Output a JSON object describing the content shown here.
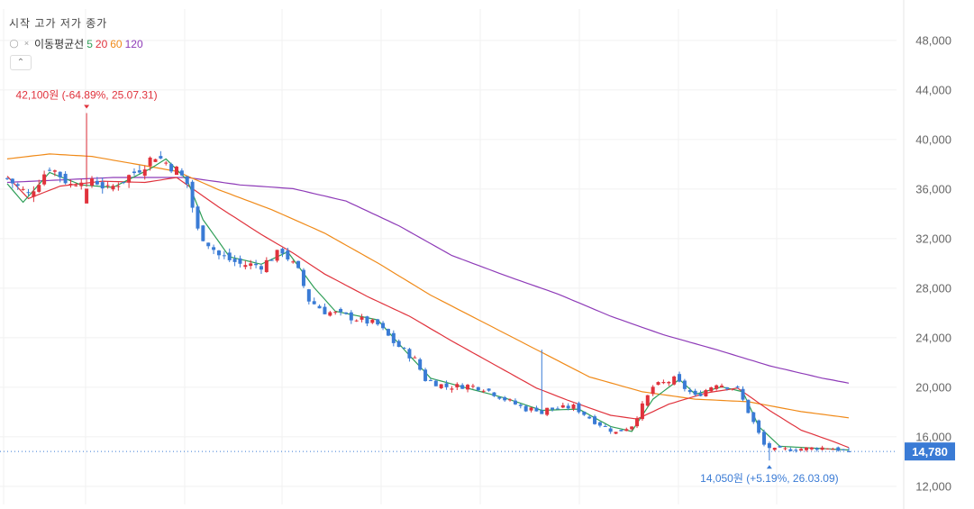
{
  "legend": {
    "ohlc_label": "시작 고가 저가 종가",
    "ma_title": "이동평균선",
    "ma_periods": [
      "5",
      "20",
      "60",
      "120"
    ],
    "collapse_icon": "chevron-up-icon",
    "hide_icon": "eye-slash-icon",
    "remove_icon": "close-icon"
  },
  "colors": {
    "up": "#e0323c",
    "down": "#3a7bd5",
    "ma5": "#2e9e57",
    "ma20": "#e0323c",
    "ma60": "#f08a18",
    "ma120": "#8e3bb8",
    "last_price_badge": "#3a7bd5"
  },
  "chart_data": {
    "type": "candlestick",
    "y_ticks": [
      "12,000",
      "16,000",
      "20,000",
      "24,000",
      "28,000",
      "32,000",
      "36,000",
      "40,000",
      "44,000",
      "48,000"
    ],
    "y_tick_values": [
      12000,
      16000,
      20000,
      24000,
      28000,
      32000,
      36000,
      40000,
      44000,
      48000
    ],
    "ylim": [
      10500,
      50500
    ],
    "n_points": 160,
    "last_price_label": "14,780",
    "last_price": 14780,
    "high_annotation": "42,100원 (-64.89%, 25.07.31)",
    "high_value": 42100,
    "high_index": 15,
    "low_annotation": "14,050원 (+5.19%, 26.03.09)",
    "low_value": 14050,
    "low_index": 144,
    "close_anchors": [
      [
        0,
        36800
      ],
      [
        4,
        35500
      ],
      [
        8,
        37800
      ],
      [
        12,
        36300
      ],
      [
        15,
        37200
      ],
      [
        19,
        35900
      ],
      [
        24,
        37300
      ],
      [
        28,
        38700
      ],
      [
        32,
        37500
      ],
      [
        34,
        36400
      ],
      [
        36,
        32600
      ],
      [
        40,
        30600
      ],
      [
        44,
        29900
      ],
      [
        48,
        29800
      ],
      [
        52,
        31000
      ],
      [
        55,
        29300
      ],
      [
        57,
        27000
      ],
      [
        60,
        26100
      ],
      [
        66,
        25500
      ],
      [
        70,
        25000
      ],
      [
        73,
        23600
      ],
      [
        77,
        22200
      ],
      [
        79,
        20600
      ],
      [
        83,
        20000
      ],
      [
        87,
        20100
      ],
      [
        90,
        19900
      ],
      [
        94,
        19000
      ],
      [
        98,
        18200
      ],
      [
        103,
        18200
      ],
      [
        107,
        18400
      ],
      [
        111,
        17200
      ],
      [
        115,
        16300
      ],
      [
        118,
        16900
      ],
      [
        122,
        20000
      ],
      [
        126,
        20600
      ],
      [
        130,
        19200
      ],
      [
        134,
        20300
      ],
      [
        138,
        19800
      ],
      [
        141,
        17100
      ],
      [
        143,
        15300
      ],
      [
        145,
        14900
      ],
      [
        150,
        15000
      ],
      [
        155,
        15100
      ],
      [
        159,
        14780
      ]
    ],
    "ma5_anchors": [
      [
        0,
        36400
      ],
      [
        3,
        34900
      ],
      [
        8,
        37300
      ],
      [
        14,
        36300
      ],
      [
        20,
        36100
      ],
      [
        27,
        37600
      ],
      [
        30,
        38400
      ],
      [
        34,
        36700
      ],
      [
        37,
        33500
      ],
      [
        42,
        30500
      ],
      [
        48,
        29900
      ],
      [
        53,
        30900
      ],
      [
        58,
        28000
      ],
      [
        62,
        26100
      ],
      [
        70,
        25400
      ],
      [
        75,
        23000
      ],
      [
        80,
        20700
      ],
      [
        86,
        20000
      ],
      [
        94,
        19100
      ],
      [
        101,
        18100
      ],
      [
        108,
        18200
      ],
      [
        114,
        16800
      ],
      [
        118,
        16400
      ],
      [
        122,
        19000
      ],
      [
        127,
        20600
      ],
      [
        130,
        19400
      ],
      [
        135,
        20000
      ],
      [
        139,
        19600
      ],
      [
        142,
        16800
      ],
      [
        146,
        15200
      ],
      [
        159,
        14900
      ]
    ],
    "ma20_anchors": [
      [
        0,
        37000
      ],
      [
        4,
        35200
      ],
      [
        10,
        36200
      ],
      [
        18,
        36600
      ],
      [
        26,
        36500
      ],
      [
        32,
        36900
      ],
      [
        40,
        34500
      ],
      [
        48,
        32300
      ],
      [
        54,
        30800
      ],
      [
        60,
        29100
      ],
      [
        68,
        27300
      ],
      [
        76,
        25700
      ],
      [
        84,
        23700
      ],
      [
        92,
        21800
      ],
      [
        100,
        19900
      ],
      [
        106,
        18900
      ],
      [
        114,
        17700
      ],
      [
        119,
        17400
      ],
      [
        125,
        18600
      ],
      [
        132,
        19500
      ],
      [
        138,
        19900
      ],
      [
        144,
        18100
      ],
      [
        150,
        16500
      ],
      [
        156,
        15600
      ],
      [
        159,
        15100
      ]
    ],
    "ma60_anchors": [
      [
        0,
        38400
      ],
      [
        8,
        38800
      ],
      [
        16,
        38600
      ],
      [
        24,
        38000
      ],
      [
        32,
        37400
      ],
      [
        40,
        35900
      ],
      [
        50,
        34300
      ],
      [
        60,
        32400
      ],
      [
        70,
        30000
      ],
      [
        80,
        27400
      ],
      [
        90,
        25200
      ],
      [
        100,
        23000
      ],
      [
        110,
        20800
      ],
      [
        120,
        19600
      ],
      [
        130,
        19000
      ],
      [
        140,
        18800
      ],
      [
        150,
        18000
      ],
      [
        159,
        17500
      ]
    ],
    "ma120_anchors": [
      [
        0,
        36500
      ],
      [
        10,
        36700
      ],
      [
        20,
        36900
      ],
      [
        34,
        36900
      ],
      [
        44,
        36300
      ],
      [
        54,
        36000
      ],
      [
        64,
        35000
      ],
      [
        74,
        33000
      ],
      [
        84,
        30600
      ],
      [
        94,
        29000
      ],
      [
        104,
        27500
      ],
      [
        114,
        25700
      ],
      [
        124,
        24200
      ],
      [
        134,
        23000
      ],
      [
        144,
        21700
      ],
      [
        154,
        20700
      ],
      [
        159,
        20300
      ]
    ]
  }
}
